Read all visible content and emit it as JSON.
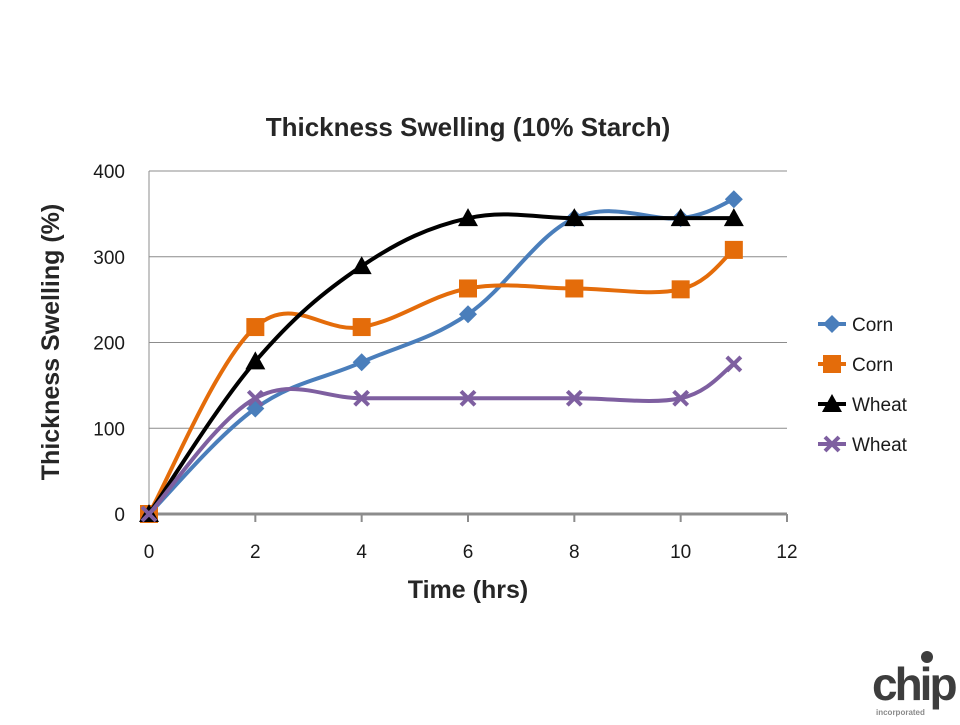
{
  "chart_data": {
    "type": "line",
    "title": "Thickness Swelling (10% Starch)",
    "xlabel": "Time (hrs)",
    "ylabel": "Thickness Swelling (%)",
    "xlim": [
      0,
      12
    ],
    "ylim": [
      0,
      400
    ],
    "xticks": [
      0,
      2,
      4,
      6,
      8,
      10,
      12
    ],
    "yticks": [
      0,
      100,
      200,
      300,
      400
    ],
    "grid": "horizontal",
    "legend": "right",
    "smooth": true,
    "x": [
      0,
      2,
      4,
      6,
      8,
      10,
      11
    ],
    "series": [
      {
        "name": "Corn",
        "color": "#4a7ebb",
        "marker": "diamond",
        "values": [
          0,
          123,
          177,
          233,
          345,
          345,
          367
        ]
      },
      {
        "name": "Corn",
        "color": "#e46c0a",
        "marker": "square",
        "values": [
          0,
          218,
          218,
          263,
          263,
          262,
          308
        ]
      },
      {
        "name": "Wheat",
        "color": "#000000",
        "marker": "triangle",
        "values": [
          0,
          178,
          289,
          345,
          345,
          345,
          345
        ]
      },
      {
        "name": "Wheat",
        "color": "#7e5fa0",
        "marker": "x",
        "values": [
          0,
          135,
          135,
          135,
          135,
          135,
          175
        ]
      }
    ]
  },
  "logo": {
    "text": "chip",
    "subtext": "incorporated",
    "icon": "chip-logo"
  }
}
